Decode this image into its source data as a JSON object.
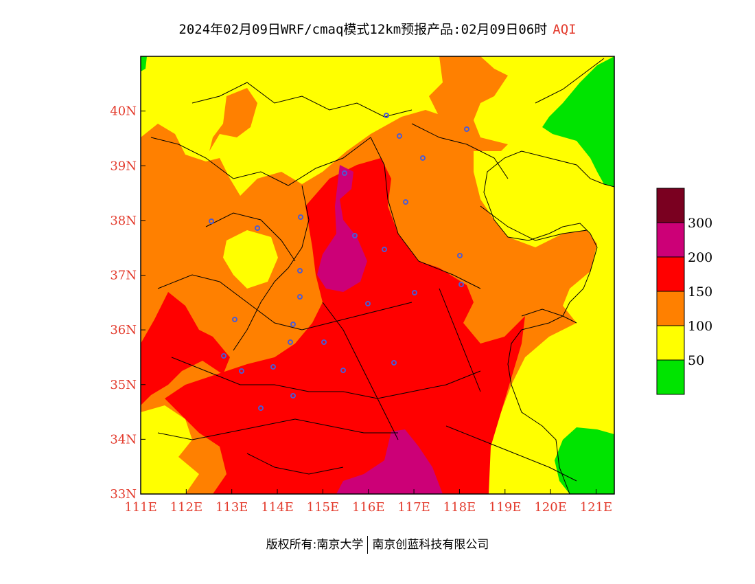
{
  "title": {
    "main": "2024年02月09日WRF/cmaq模式12km预报产品:02月09日06时",
    "variable": "AQI"
  },
  "map": {
    "lon_range": [
      111,
      121.4
    ],
    "lat_range": [
      33,
      41
    ],
    "lon_ticks": [
      "111E",
      "112E",
      "113E",
      "114E",
      "115E",
      "116E",
      "117E",
      "118E",
      "119E",
      "120E",
      "121E"
    ],
    "lat_ticks": [
      "33N",
      "34N",
      "35N",
      "36N",
      "37N",
      "38N",
      "39N",
      "40N"
    ],
    "tick_color": "#e33a2c",
    "stations_color": "#4b5bd6"
  },
  "legend": {
    "levels": [
      {
        "label": "",
        "color": "#7a0020"
      },
      {
        "label": "300",
        "color": "#cc0077"
      },
      {
        "label": "200",
        "color": "#ff0000"
      },
      {
        "label": "150",
        "color": "#ff8000"
      },
      {
        "label": "100",
        "color": "#ffff00"
      },
      {
        "label": "50",
        "color": "#00e400"
      }
    ]
  },
  "footer": {
    "copyright": "版权所有:南京大学",
    "company": "南京创蓝科技有限公司"
  }
}
